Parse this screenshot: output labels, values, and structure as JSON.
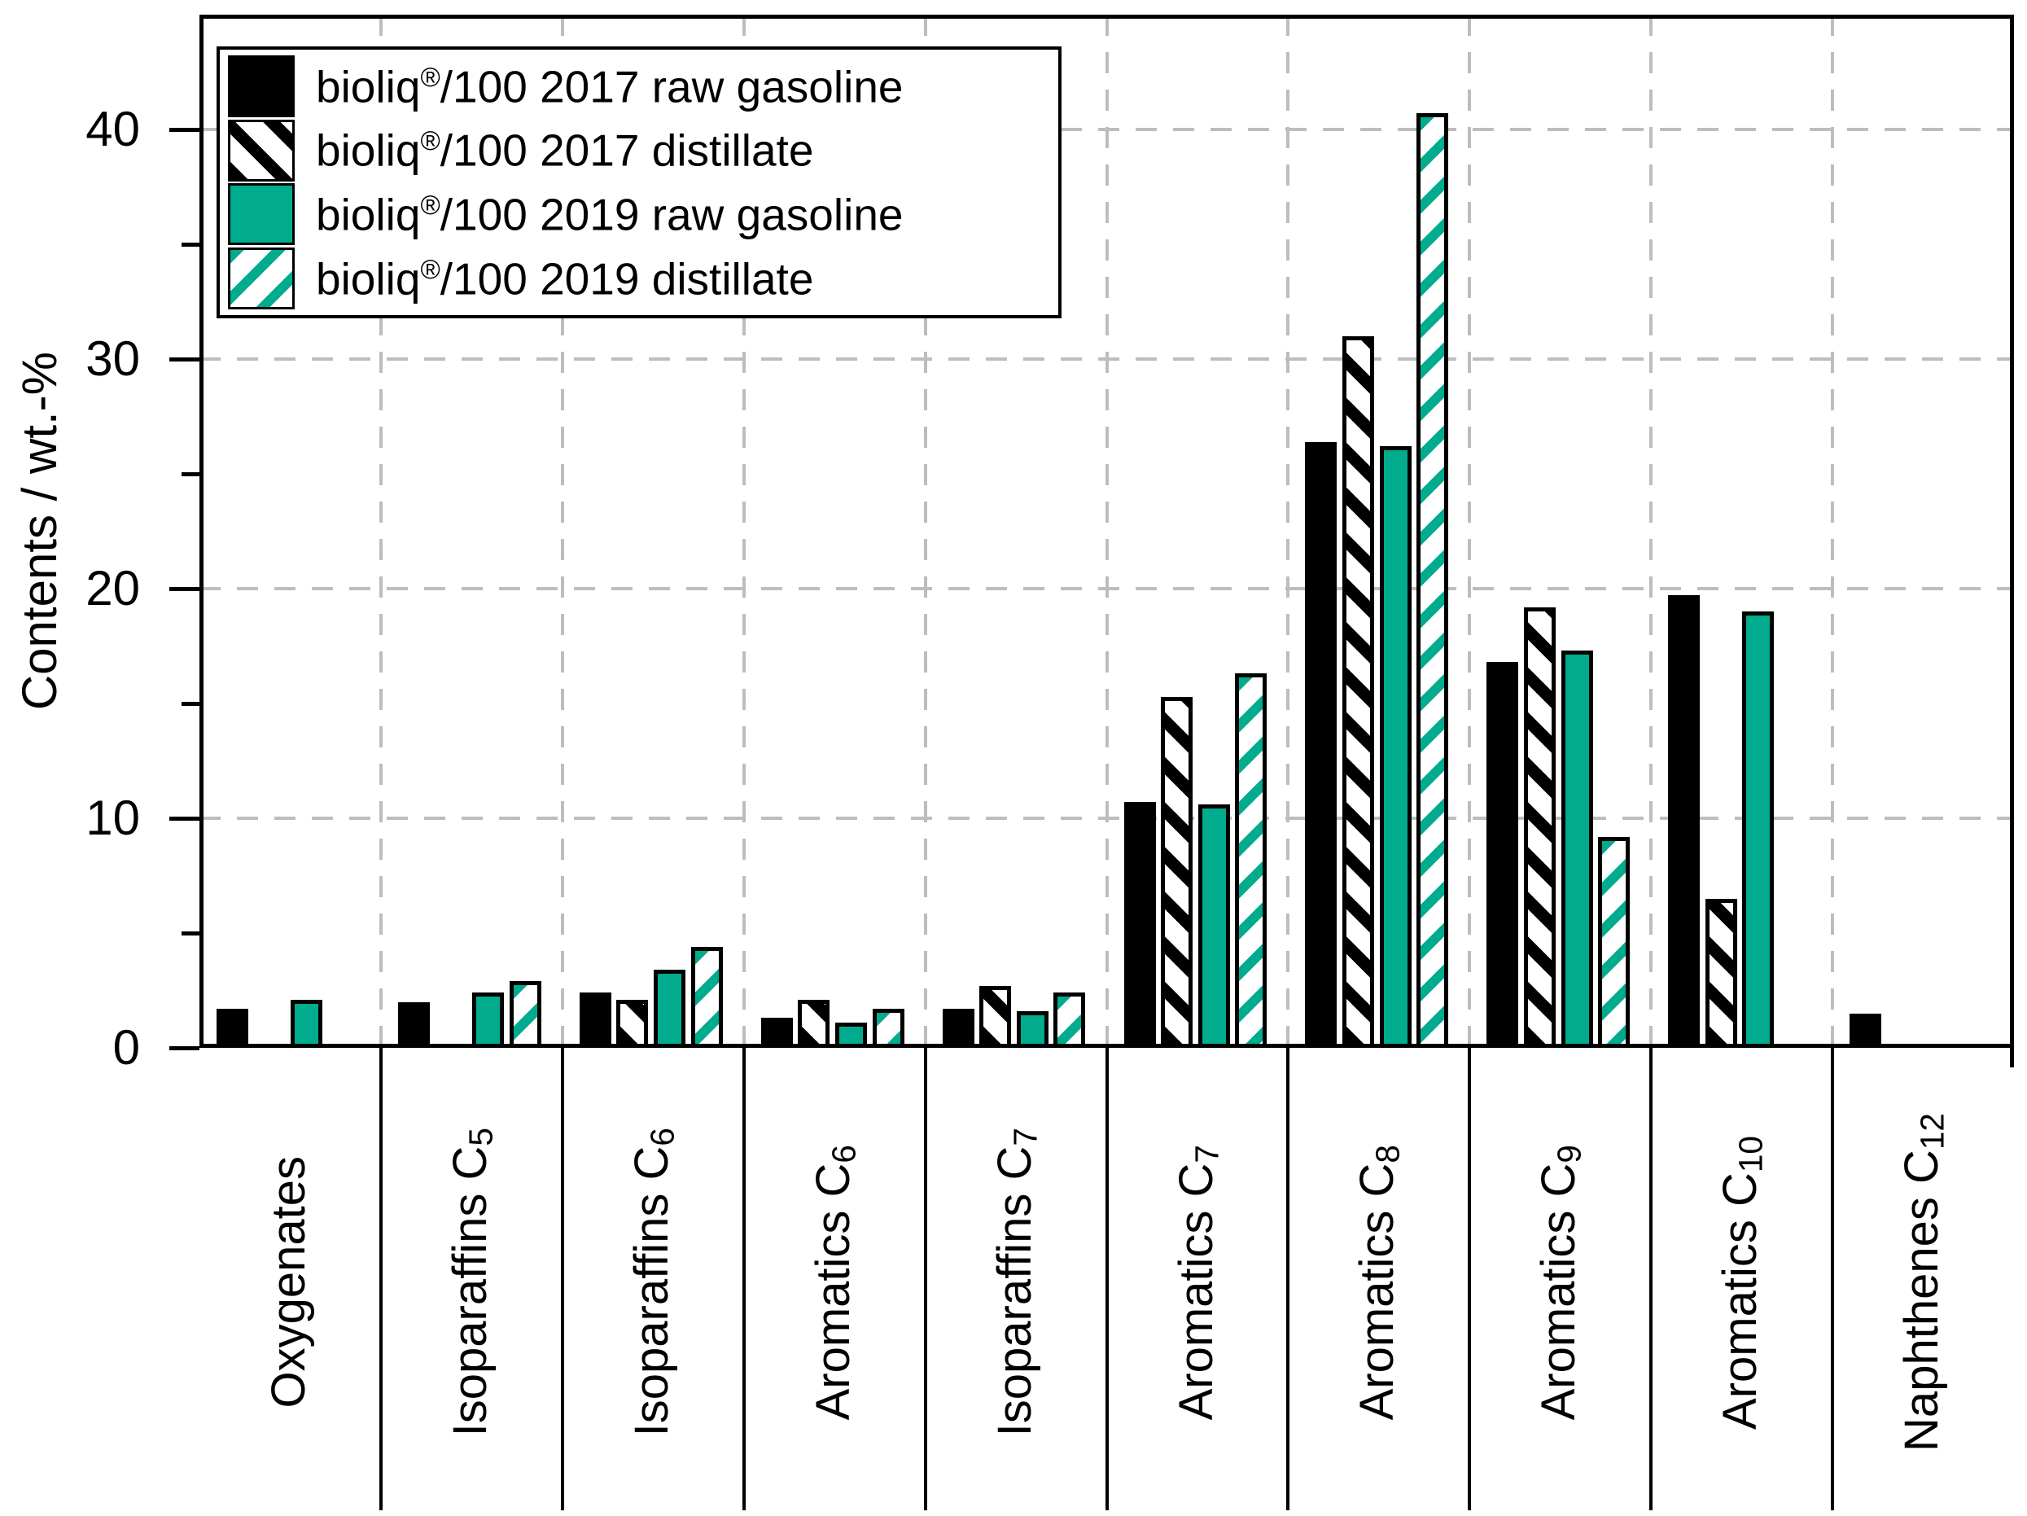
{
  "y_axis": {
    "title": "Contents / wt.-%",
    "tick_labels": [
      "0",
      "10",
      "20",
      "30",
      "40"
    ],
    "tick_values": [
      0,
      10,
      20,
      30,
      40
    ],
    "minor_tick_values": [
      5,
      15,
      25,
      35
    ],
    "max": 45
  },
  "legend": {
    "items": [
      {
        "pre": "bioliq",
        "reg": "®",
        "post": "/100 2017 raw gasoline"
      },
      {
        "pre": "bioliq",
        "reg": "®",
        "post": "/100 2017 distillate"
      },
      {
        "pre": "bioliq",
        "reg": "®",
        "post": "/100 2019 raw gasoline"
      },
      {
        "pre": "bioliq",
        "reg": "®",
        "post": "/100 2019 distillate"
      }
    ]
  },
  "chart_data": {
    "type": "bar",
    "title": "",
    "xlabel": "",
    "ylabel": "Contents / wt.-%",
    "ylim": [
      0,
      45
    ],
    "grid": "dashed, major ticks only, behind bars",
    "legend_position": "top-left",
    "categories": [
      {
        "name": "Oxygenates",
        "sub": ""
      },
      {
        "name": "Isoparaffins C",
        "sub": "5"
      },
      {
        "name": "Isoparaffins C",
        "sub": "6"
      },
      {
        "name": "Aromatics C",
        "sub": "6"
      },
      {
        "name": "Isoparaffins C",
        "sub": "7"
      },
      {
        "name": "Aromatics C",
        "sub": "7"
      },
      {
        "name": "Aromatics C",
        "sub": "8"
      },
      {
        "name": "Aromatics C",
        "sub": "9"
      },
      {
        "name": "Aromatics C",
        "sub": "10"
      },
      {
        "name": "Naphthenes C",
        "sub": "12"
      }
    ],
    "series": [
      {
        "name": "bioliq®/100 2017 raw gasoline",
        "fill": "solid",
        "color": "#000000",
        "values": [
          1.7,
          2.0,
          2.4,
          1.3,
          1.7,
          10.7,
          26.4,
          16.8,
          19.7,
          1.5
        ]
      },
      {
        "name": "bioliq®/100 2017 distillate",
        "fill": "hatch",
        "color": "#000000",
        "hatch_direction": "down-right",
        "values": [
          0,
          0,
          2.1,
          2.1,
          2.7,
          15.3,
          31.0,
          19.2,
          6.5,
          0
        ]
      },
      {
        "name": "bioliq®/100 2019 raw gasoline",
        "fill": "solid",
        "color": "#00ab8e",
        "values": [
          2.1,
          2.4,
          3.4,
          1.1,
          1.6,
          10.6,
          26.2,
          17.3,
          19.0,
          0
        ]
      },
      {
        "name": "bioliq®/100 2019 distillate",
        "fill": "hatch",
        "color": "#00ab8e",
        "hatch_direction": "up-right",
        "values": [
          0,
          2.9,
          4.4,
          1.7,
          2.4,
          16.3,
          40.7,
          9.2,
          0,
          0
        ]
      }
    ],
    "colors": {
      "bar_black": "#000000",
      "bar_teal": "#00ab8e",
      "grid_gray": "#bdbdbd",
      "frame": "#000000"
    }
  }
}
